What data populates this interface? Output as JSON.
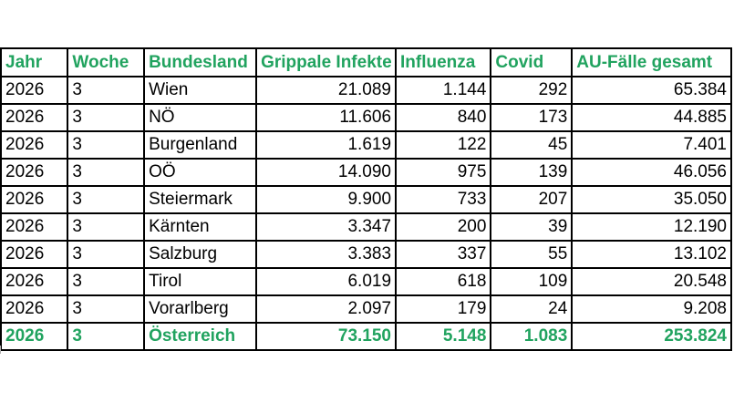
{
  "colors": {
    "header_green": "#21a35f",
    "data_black": "#000000",
    "border_black": "#000000",
    "background": "#ffffff"
  },
  "table": {
    "headers": [
      "Jahr",
      "Woche",
      "Bundesland",
      "Grippale Infekte",
      "Influenza",
      "Covid",
      "AU-Fälle gesamt"
    ],
    "rows": [
      [
        "2026",
        "3",
        "Wien",
        "21.089",
        "1.144",
        "292",
        "65.384"
      ],
      [
        "2026",
        "3",
        "NÖ",
        "11.606",
        "840",
        "173",
        "44.885"
      ],
      [
        "2026",
        "3",
        "Burgenland",
        "1.619",
        "122",
        "45",
        "7.401"
      ],
      [
        "2026",
        "3",
        "OÖ",
        "14.090",
        "975",
        "139",
        "46.056"
      ],
      [
        "2026",
        "3",
        "Steiermark",
        "9.900",
        "733",
        "207",
        "35.050"
      ],
      [
        "2026",
        "3",
        "Kärnten",
        "3.347",
        "200",
        "39",
        "12.190"
      ],
      [
        "2026",
        "3",
        "Salzburg",
        "3.383",
        "337",
        "55",
        "13.102"
      ],
      [
        "2026",
        "3",
        "Tirol",
        "6.019",
        "618",
        "109",
        "20.548"
      ],
      [
        "2026",
        "3",
        "Vorarlberg",
        "2.097",
        "179",
        "24",
        "9.208"
      ]
    ],
    "total_row": [
      "2026",
      "3",
      "Österreich",
      "73.150",
      "5.148",
      "1.083",
      "253.824"
    ]
  },
  "layout_meta": {
    "numeric_columns_start_index": 3
  }
}
